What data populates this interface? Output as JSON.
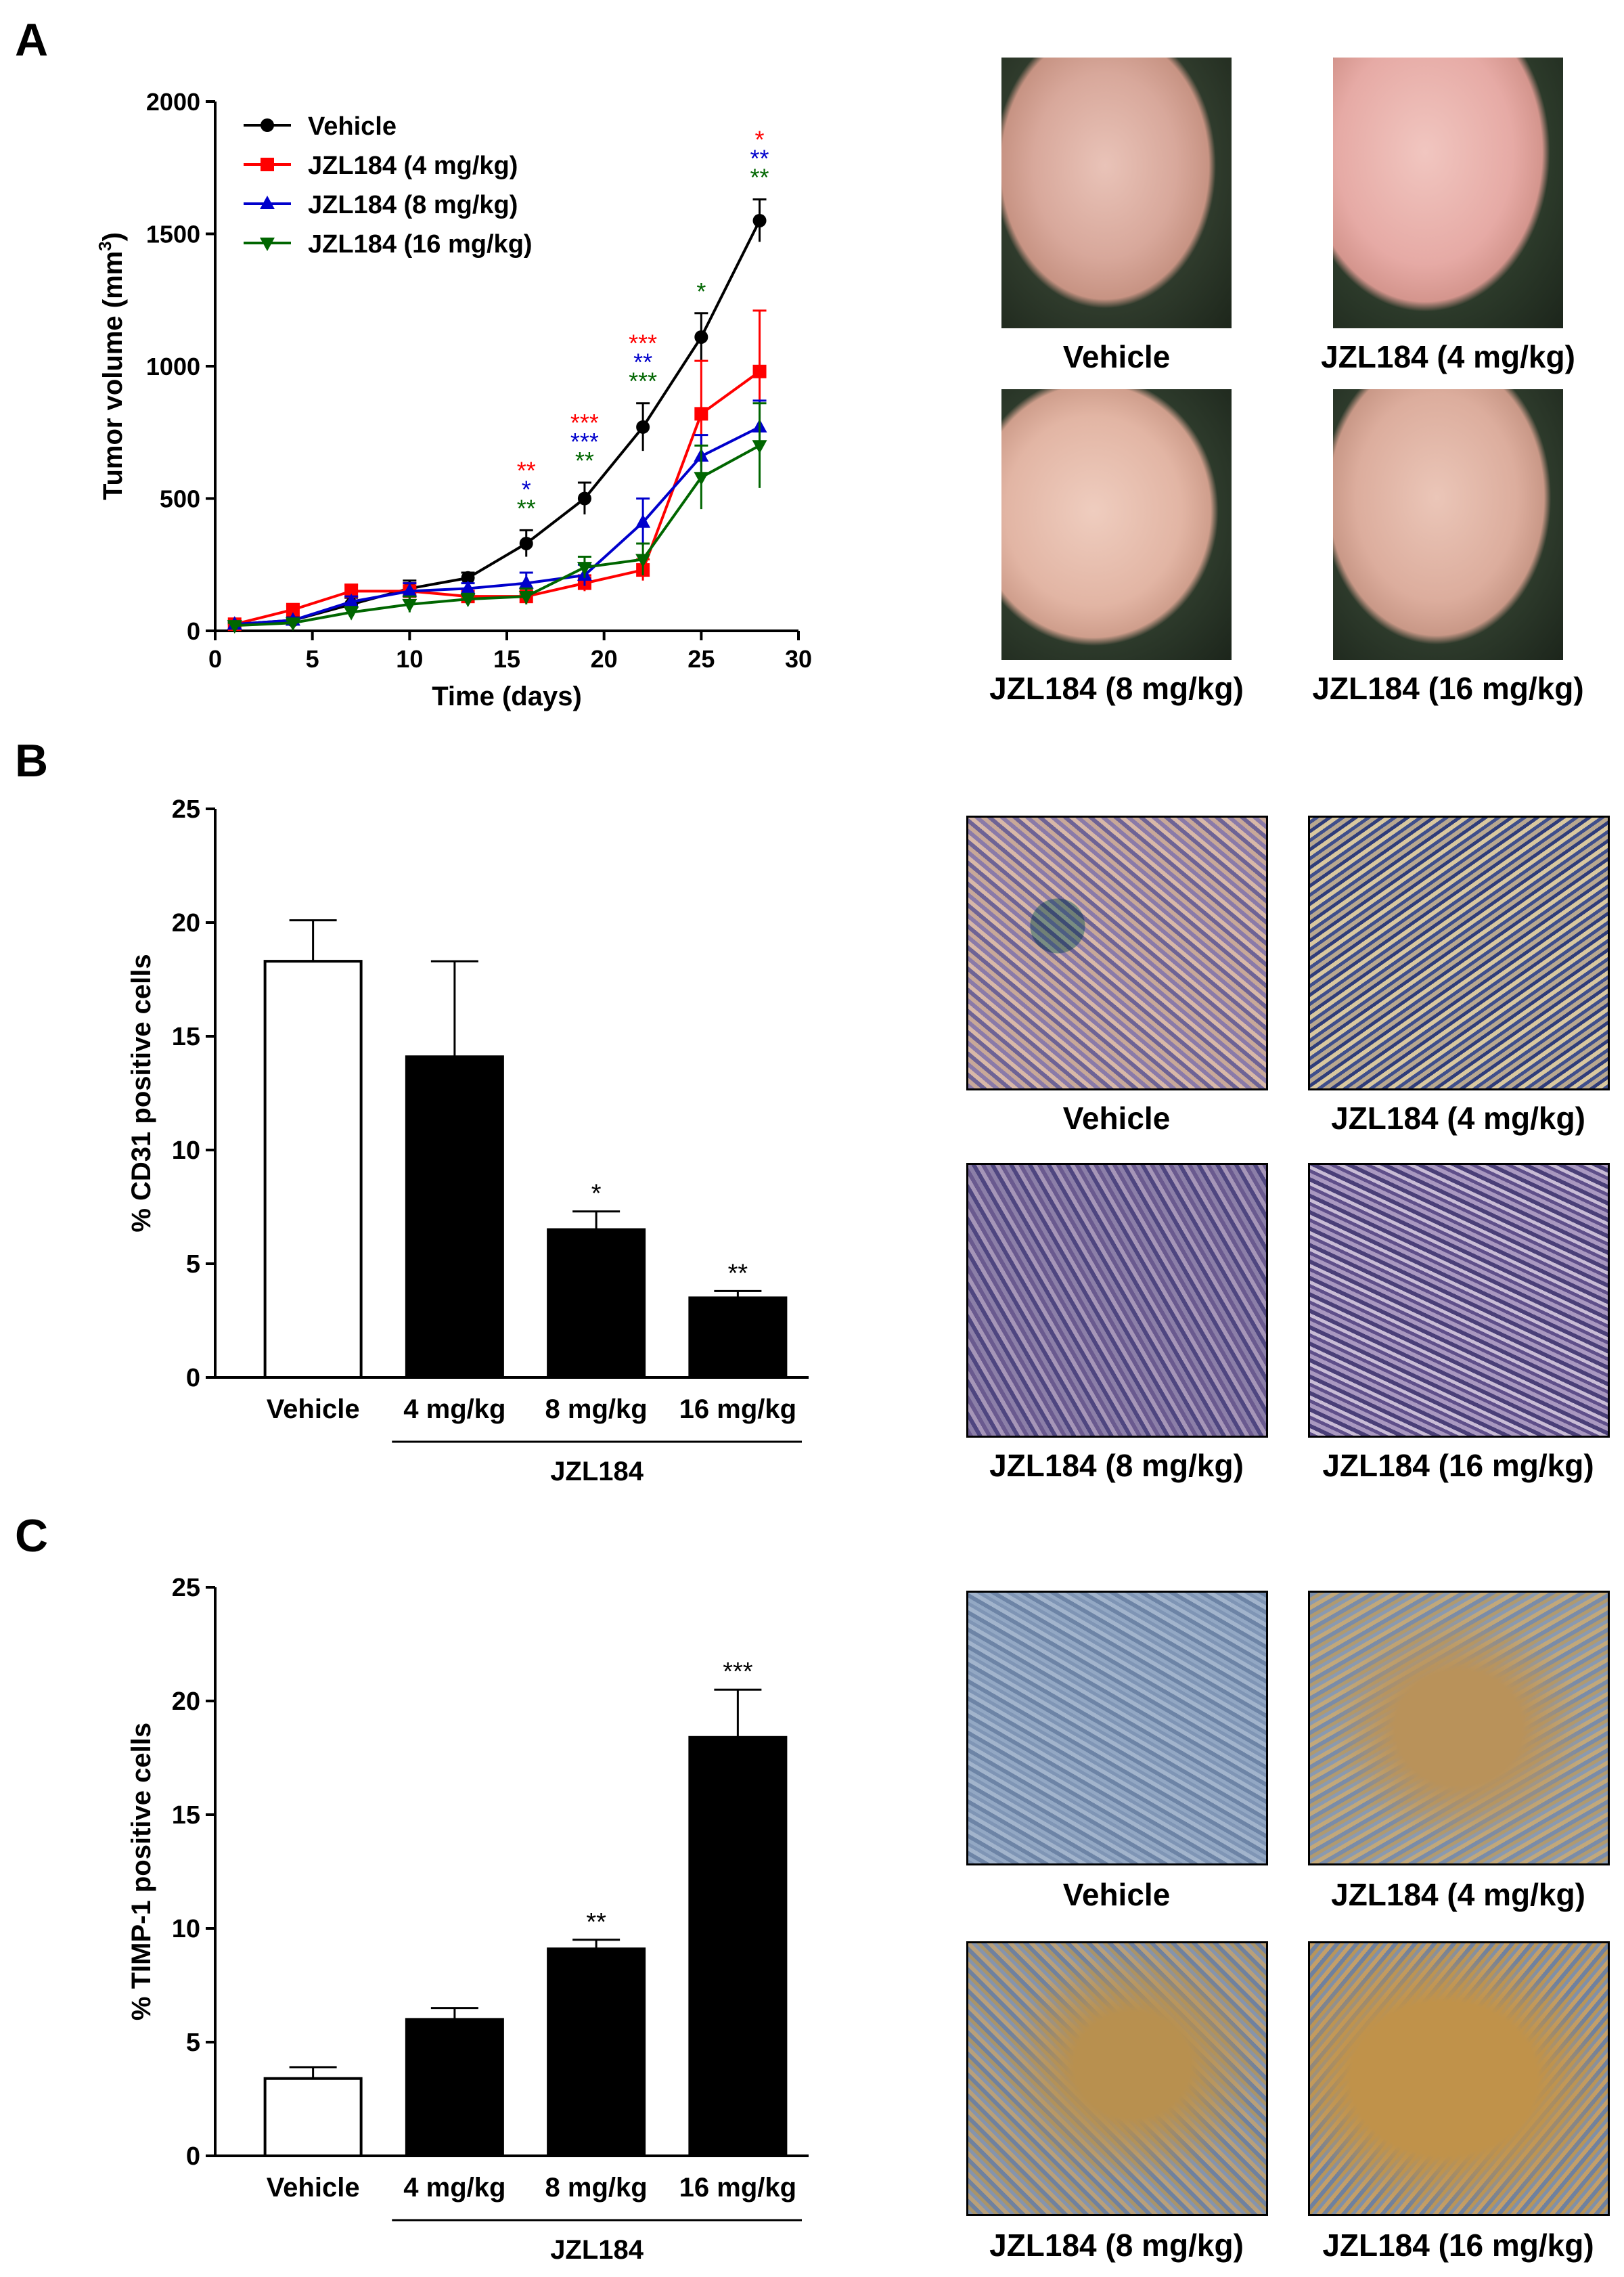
{
  "panels": {
    "a": "A",
    "b": "B",
    "c": "C"
  },
  "chart_data": [
    {
      "type": "line",
      "title": "",
      "xlabel": "Time (days)",
      "ylabel_main": "Tumor volume (mm",
      "ylabel_sup": "3",
      "ylabel_end": ")",
      "xlim": [
        0,
        30
      ],
      "ylim": [
        0,
        2000
      ],
      "xticks": [
        0,
        5,
        10,
        15,
        20,
        25,
        30
      ],
      "yticks": [
        0,
        500,
        1000,
        1500,
        2000
      ],
      "legend_position": "top-left",
      "grid": false,
      "x": [
        1,
        4,
        7,
        10,
        13,
        16,
        19,
        22,
        25,
        28
      ],
      "series": [
        {
          "name": "Vehicle",
          "color": "#000000",
          "marker": "circle",
          "values": [
            25,
            40,
            100,
            160,
            200,
            330,
            500,
            770,
            1110,
            1550
          ],
          "errors": [
            10,
            15,
            25,
            30,
            20,
            50,
            60,
            90,
            90,
            80
          ]
        },
        {
          "name": "JZL184 (4 mg/kg)",
          "color": "#ff0000",
          "marker": "square",
          "values": [
            25,
            80,
            150,
            150,
            130,
            130,
            180,
            230,
            820,
            980
          ],
          "errors": [
            10,
            15,
            25,
            30,
            20,
            20,
            30,
            40,
            200,
            230
          ]
        },
        {
          "name": "JZL184 (8 mg/kg)",
          "color": "#0000cc",
          "marker": "triangle-up",
          "values": [
            25,
            40,
            110,
            150,
            160,
            180,
            210,
            410,
            660,
            770
          ],
          "errors": [
            10,
            10,
            20,
            30,
            20,
            40,
            40,
            90,
            80,
            100
          ]
        },
        {
          "name": "JZL184 (16 mg/kg)",
          "color": "#006600",
          "marker": "triangle-down",
          "values": [
            20,
            30,
            70,
            100,
            120,
            130,
            240,
            270,
            580,
            700
          ],
          "errors": [
            10,
            10,
            20,
            30,
            20,
            30,
            40,
            60,
            120,
            160
          ]
        }
      ],
      "annotations": [
        {
          "x": 16,
          "rows": [
            {
              "text": "**",
              "color": "#ff0000"
            },
            {
              "text": "*",
              "color": "#0000cc"
            },
            {
              "text": "**",
              "color": "#006600"
            }
          ]
        },
        {
          "x": 19,
          "rows": [
            {
              "text": "***",
              "color": "#ff0000"
            },
            {
              "text": "***",
              "color": "#0000cc"
            },
            {
              "text": "**",
              "color": "#006600"
            }
          ]
        },
        {
          "x": 22,
          "rows": [
            {
              "text": "***",
              "color": "#ff0000"
            },
            {
              "text": "**",
              "color": "#0000cc"
            },
            {
              "text": "***",
              "color": "#006600"
            }
          ]
        },
        {
          "x": 25,
          "rows": [
            {
              "text": "*",
              "color": "#006600"
            }
          ]
        },
        {
          "x": 28,
          "rows": [
            {
              "text": "*",
              "color": "#ff0000"
            },
            {
              "text": "**",
              "color": "#0000cc"
            },
            {
              "text": "**",
              "color": "#006600"
            }
          ]
        }
      ]
    },
    {
      "type": "bar",
      "title": "",
      "ylabel": "% CD31 positive cells",
      "ylim": [
        0,
        25
      ],
      "yticks": [
        0,
        5,
        10,
        15,
        20,
        25
      ],
      "categories": [
        "Vehicle",
        "4 mg/kg",
        "8 mg/kg",
        "16 mg/kg"
      ],
      "group_label": "JZL184",
      "values": [
        18.3,
        14.1,
        6.5,
        3.5
      ],
      "errors": [
        1.8,
        4.2,
        0.8,
        0.3
      ],
      "bar_colors": [
        "#ffffff",
        "#000000",
        "#000000",
        "#000000"
      ],
      "significance": [
        "",
        "",
        "*",
        "**"
      ]
    },
    {
      "type": "bar",
      "title": "",
      "ylabel": "% TIMP-1 positive cells",
      "ylim": [
        0,
        25
      ],
      "yticks": [
        0,
        5,
        10,
        15,
        20,
        25
      ],
      "categories": [
        "Vehicle",
        "4 mg/kg",
        "8 mg/kg",
        "16 mg/kg"
      ],
      "group_label": "JZL184",
      "values": [
        3.4,
        6.0,
        9.1,
        18.4
      ],
      "errors": [
        0.5,
        0.5,
        0.4,
        2.1
      ],
      "bar_colors": [
        "#ffffff",
        "#000000",
        "#000000",
        "#000000"
      ],
      "significance": [
        "",
        "",
        "**",
        "***"
      ]
    }
  ],
  "images": {
    "a": [
      "Vehicle",
      "JZL184 (4 mg/kg)",
      "JZL184 (8 mg/kg)",
      "JZL184 (16 mg/kg)"
    ],
    "b": [
      "Vehicle",
      "JZL184 (4 mg/kg)",
      "JZL184 (8 mg/kg)",
      "JZL184 (16 mg/kg)"
    ],
    "c": [
      "Vehicle",
      "JZL184 (4 mg/kg)",
      "JZL184 (8 mg/kg)",
      "JZL184 (16 mg/kg)"
    ]
  }
}
